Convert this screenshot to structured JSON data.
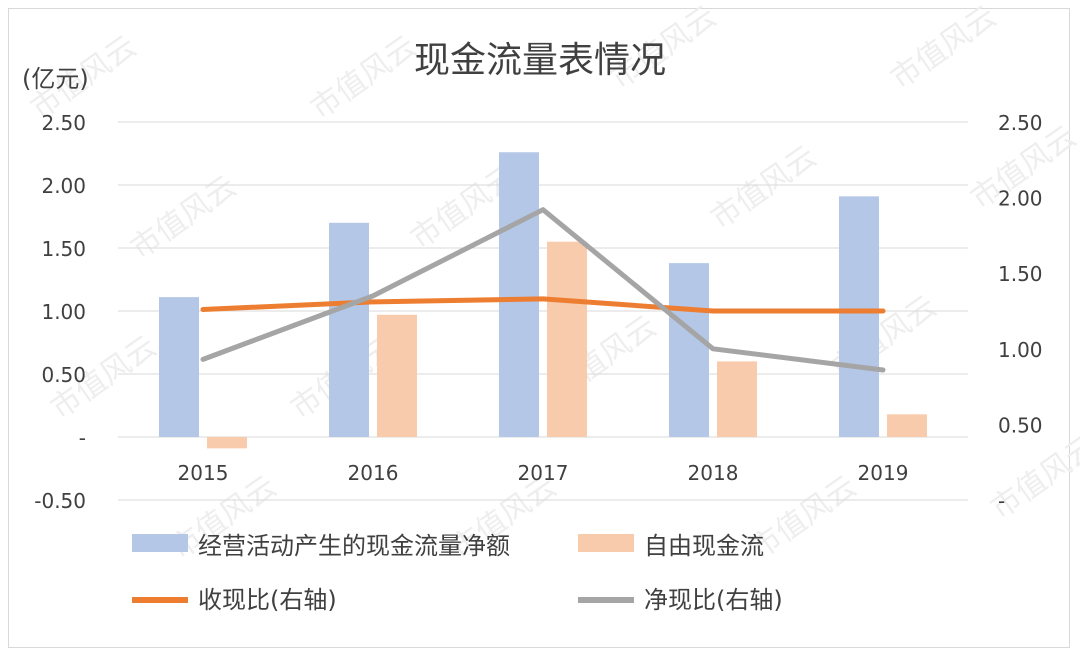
{
  "chart_data": {
    "type": "bar",
    "title": "现金流量表情况",
    "y_unit": "(亿元)",
    "categories": [
      "2015",
      "2016",
      "2017",
      "2018",
      "2019"
    ],
    "left_axis": {
      "ticks": [
        2.5,
        2.0,
        1.5,
        1.0,
        0.5,
        0.0,
        -0.5
      ],
      "tick_labels": [
        "2.50",
        "2.00",
        "1.50",
        "1.00",
        "0.50",
        "-",
        "-0.50"
      ],
      "ylim": [
        -0.5,
        2.5
      ]
    },
    "right_axis": {
      "ticks": [
        2.5,
        2.0,
        1.5,
        1.0,
        0.5,
        0.0
      ],
      "tick_labels": [
        "2.50",
        "2.00",
        "1.50",
        "1.00",
        "0.50",
        "-"
      ],
      "ylim": [
        0.0,
        2.5
      ]
    },
    "grid": true,
    "legend_position": "bottom",
    "series": [
      {
        "name": "经营活动产生的现金流量净额",
        "kind": "bar",
        "axis": "left",
        "color": "#b4c7e7",
        "values": [
          1.11,
          1.7,
          2.26,
          1.38,
          1.91
        ]
      },
      {
        "name": "自由现金流",
        "kind": "bar",
        "axis": "left",
        "color": "#f8cbad",
        "values": [
          -0.09,
          0.97,
          1.55,
          0.6,
          0.18
        ]
      },
      {
        "name": "收现比(右轴)",
        "kind": "line",
        "axis": "right",
        "color": "#ed7d31",
        "values": [
          1.26,
          1.31,
          1.33,
          1.25,
          1.25
        ]
      },
      {
        "name": "净现比(右轴)",
        "kind": "line",
        "axis": "right",
        "color": "#a5a5a5",
        "values": [
          0.93,
          1.35,
          1.92,
          1.0,
          0.86
        ]
      }
    ],
    "watermark": "市值风云"
  }
}
